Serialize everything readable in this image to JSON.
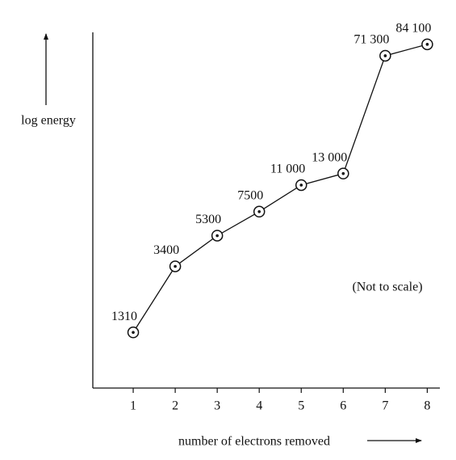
{
  "chart_data": {
    "type": "line",
    "y_label": "log energy",
    "x_label": "number of electrons removed",
    "annotation": "(Not to scale)",
    "x": [
      1,
      2,
      3,
      4,
      5,
      6,
      7,
      8
    ],
    "xlim": [
      0,
      8.3
    ],
    "xticks": [
      1,
      2,
      3,
      4,
      5,
      6,
      7,
      8
    ],
    "ylim": [
      600,
      100000
    ],
    "log_y": true,
    "values": [
      1310,
      3400,
      5300,
      7500,
      11000,
      13000,
      71300,
      84100
    ],
    "value_labels": [
      "1310",
      "3400",
      "5300",
      "7500",
      "11 000",
      "13 000",
      "71 300",
      "84 100"
    ],
    "color": "#111111"
  }
}
